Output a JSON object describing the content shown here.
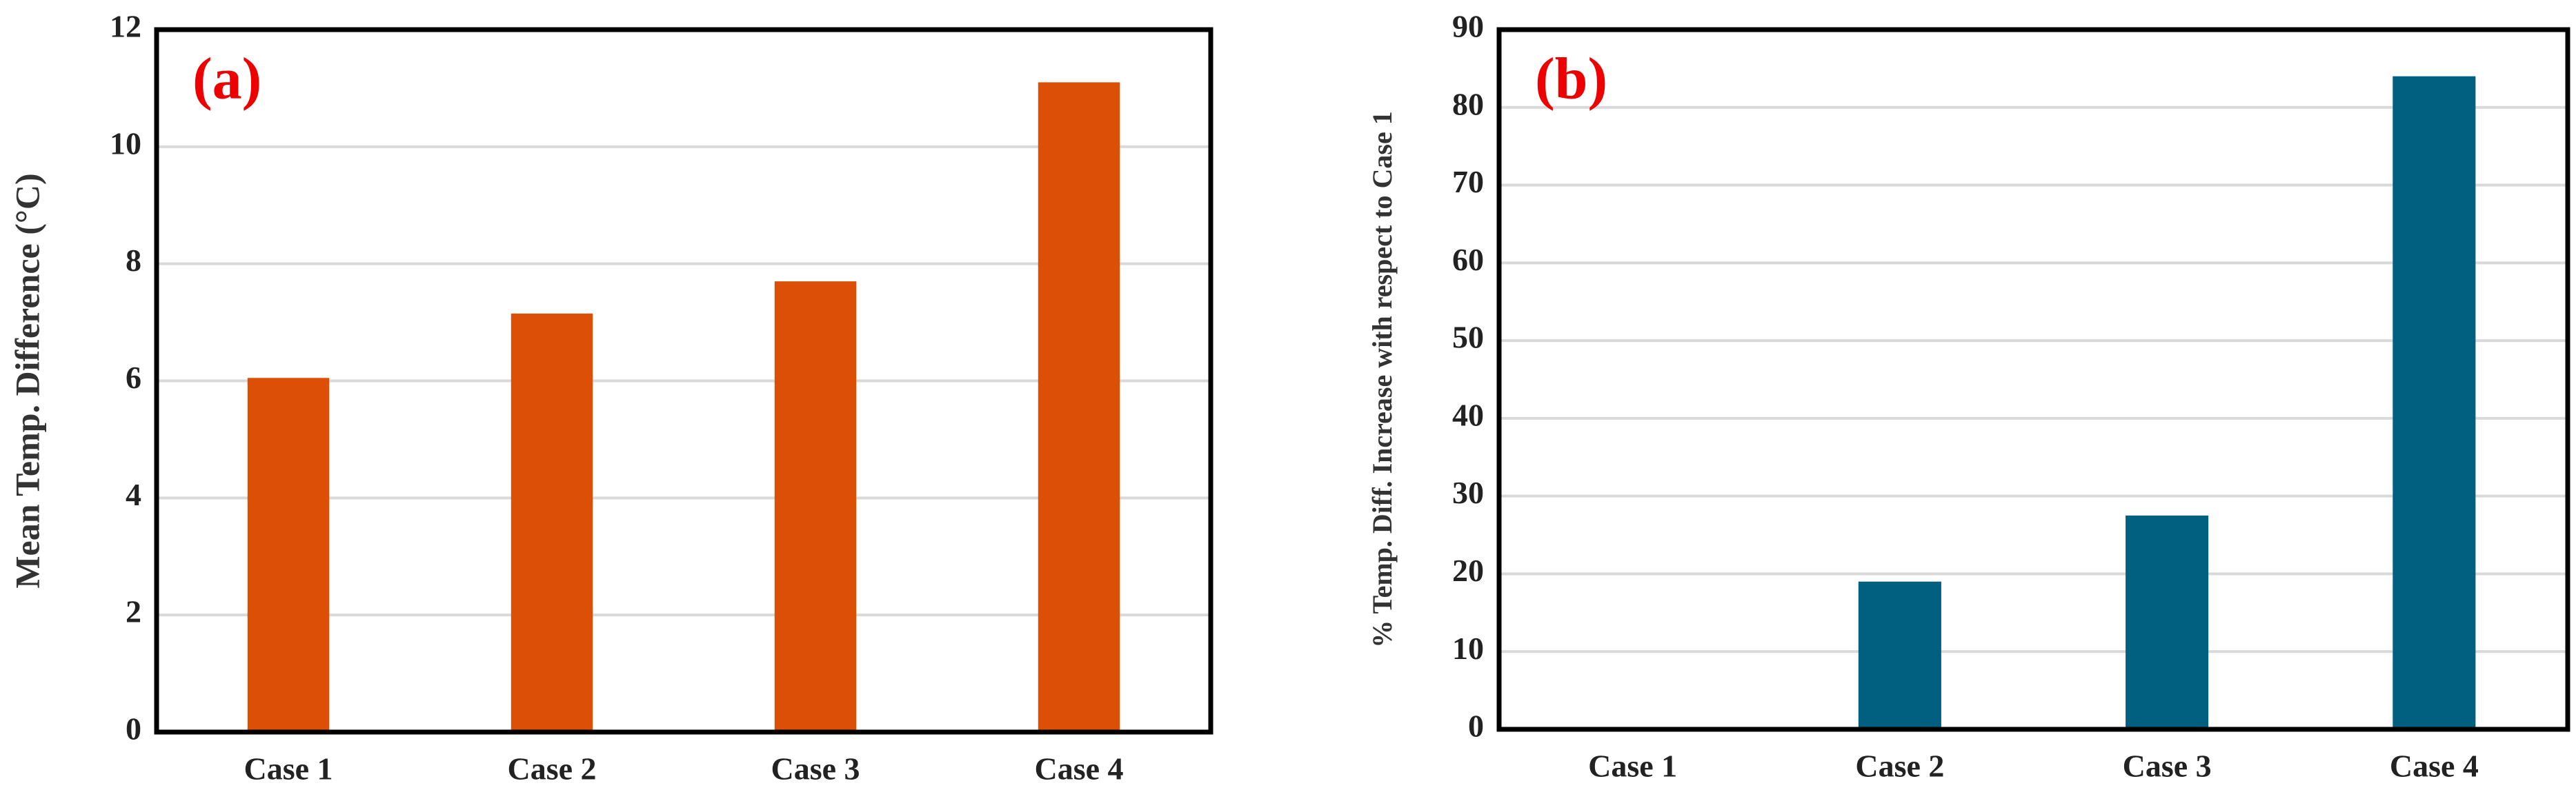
{
  "chart_data": [
    {
      "type": "bar",
      "annotation": "(a)",
      "y_label": "Mean Temp. Difference (°C)",
      "categories": [
        "Case 1",
        "Case 2",
        "Case 3",
        "Case 4"
      ],
      "values": [
        6.05,
        7.15,
        7.7,
        11.1
      ],
      "color": "#dc4f06",
      "ylim": [
        0,
        12
      ],
      "yticks": [
        0,
        2,
        4,
        6,
        8,
        10,
        12
      ],
      "grid": true
    },
    {
      "type": "bar",
      "annotation": "(b)",
      "y_label": "% Temp. Diff. Increase with respect to Case 1",
      "categories": [
        "Case 1",
        "Case 2",
        "Case 3",
        "Case 4"
      ],
      "values": [
        0,
        19,
        27.5,
        84
      ],
      "color": "#015f7f",
      "ylim": [
        0,
        90
      ],
      "yticks": [
        0,
        10,
        20,
        30,
        40,
        50,
        60,
        70,
        80,
        90
      ],
      "grid": true
    }
  ]
}
